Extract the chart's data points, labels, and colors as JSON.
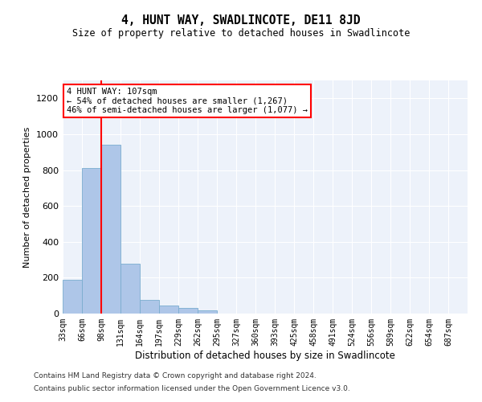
{
  "title": "4, HUNT WAY, SWADLINCOTE, DE11 8JD",
  "subtitle": "Size of property relative to detached houses in Swadlincote",
  "xlabel": "Distribution of detached houses by size in Swadlincote",
  "ylabel": "Number of detached properties",
  "categories": [
    "33sqm",
    "66sqm",
    "98sqm",
    "131sqm",
    "164sqm",
    "197sqm",
    "229sqm",
    "262sqm",
    "295sqm",
    "327sqm",
    "360sqm",
    "393sqm",
    "425sqm",
    "458sqm",
    "491sqm",
    "524sqm",
    "556sqm",
    "589sqm",
    "622sqm",
    "654sqm",
    "687sqm"
  ],
  "values": [
    190,
    810,
    940,
    280,
    75,
    45,
    32,
    20,
    0,
    0,
    0,
    0,
    0,
    0,
    0,
    0,
    0,
    0,
    0,
    0,
    0
  ],
  "bar_color": "#aec6e8",
  "bar_edge_color": "#7aadcf",
  "property_line_x": 2.0,
  "annotation_line1": "4 HUNT WAY: 107sqm",
  "annotation_line2": "← 54% of detached houses are smaller (1,267)",
  "annotation_line3": "46% of semi-detached houses are larger (1,077) →",
  "ylim": [
    0,
    1300
  ],
  "yticks": [
    0,
    200,
    400,
    600,
    800,
    1000,
    1200
  ],
  "background_color": "#edf2fa",
  "footer_line1": "Contains HM Land Registry data © Crown copyright and database right 2024.",
  "footer_line2": "Contains public sector information licensed under the Open Government Licence v3.0."
}
